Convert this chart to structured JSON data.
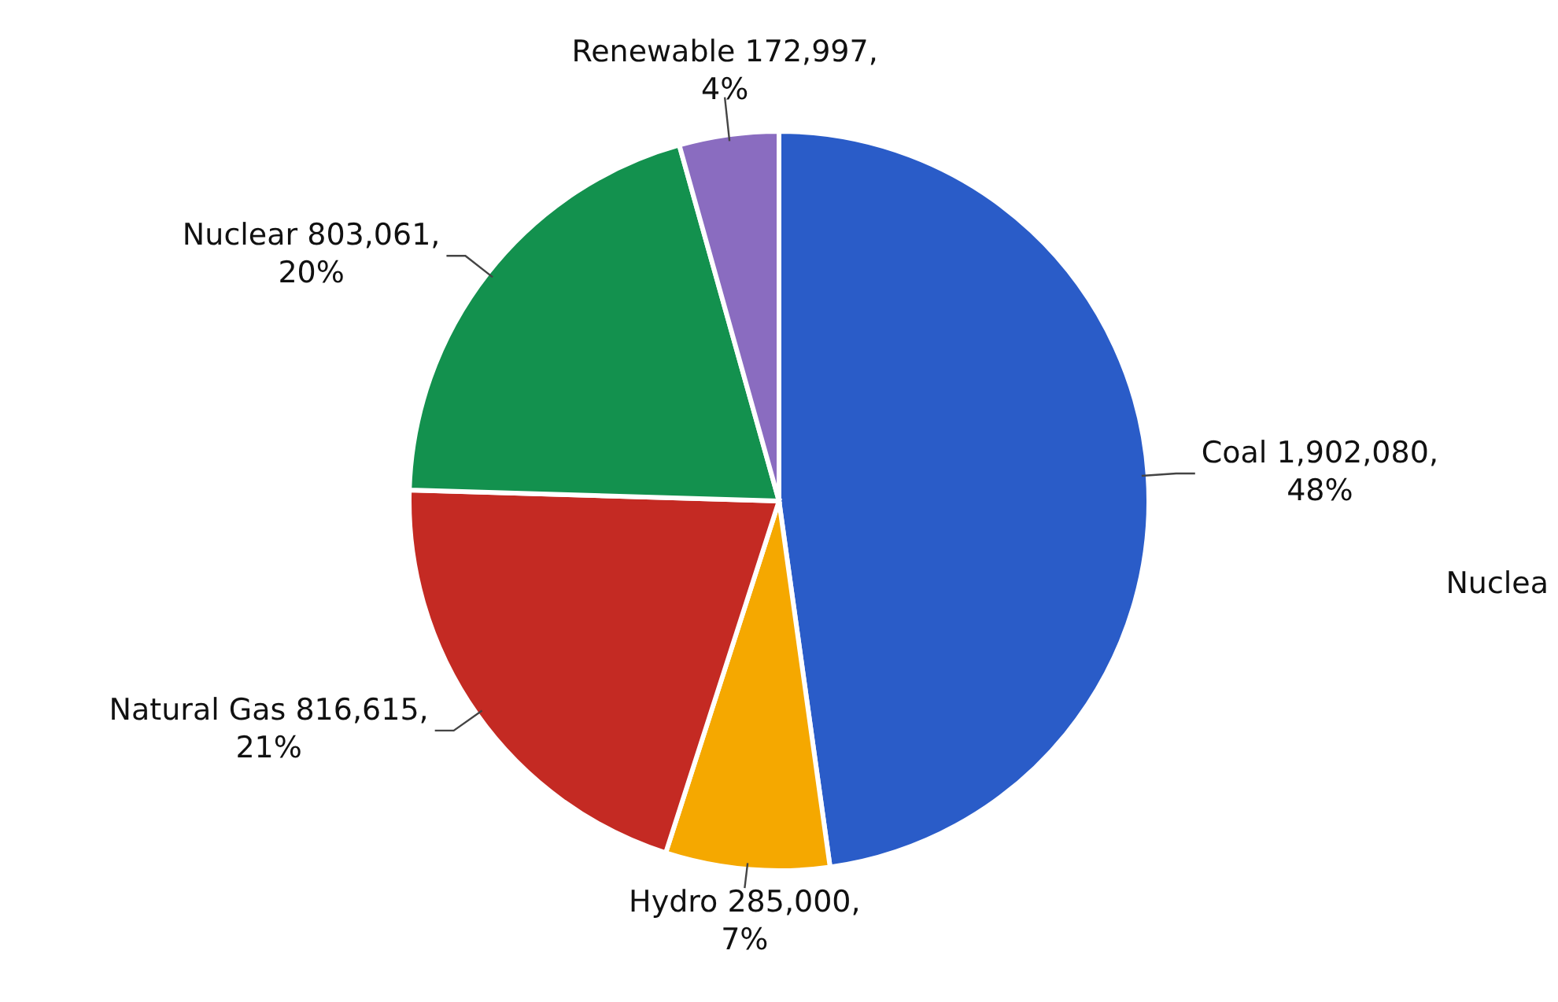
{
  "chart_data": {
    "type": "pie",
    "categories": [
      "Coal",
      "Hydro",
      "Natural Gas",
      "Nuclear",
      "Renewable"
    ],
    "values": [
      1902080,
      285000,
      816615,
      803061,
      172997
    ],
    "colors": [
      "#2a5cc8",
      "#f5a800",
      "#c42a23",
      "#13914e",
      "#8a6cc0"
    ],
    "value_labels": [
      "1,902,080,\n48%",
      "285,000,\n7%",
      "816,615,\n21%",
      "803,061,\n20%",
      "172,997,\n4%"
    ],
    "annotations": [
      "Nuclea"
    ],
    "legend": false
  }
}
